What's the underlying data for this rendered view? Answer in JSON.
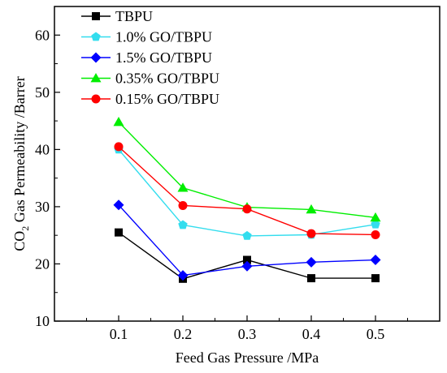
{
  "chart_data": {
    "type": "line",
    "title": "",
    "xlabel": "Feed Gas Pressure /MPa",
    "ylabel": "CO2 Gas Permeability /Barrer",
    "ylabel_parts": {
      "pre": "CO",
      "sub": "2",
      "post": " Gas Permeability /Barrer"
    },
    "x": [
      0.1,
      0.2,
      0.3,
      0.4,
      0.5
    ],
    "xticks": [
      "0.1",
      "0.2",
      "0.3",
      "0.4",
      "0.5"
    ],
    "yticks": [
      "10",
      "20",
      "30",
      "40",
      "50",
      "60"
    ],
    "xlim": [
      0.0,
      0.6
    ],
    "ylim": [
      10,
      65
    ],
    "grid": false,
    "legend_position": "top-left",
    "series": [
      {
        "name": "TBPU",
        "color": "#000000",
        "marker": "square",
        "values": [
          25.5,
          17.4,
          20.7,
          17.5,
          17.5
        ]
      },
      {
        "name": "1.0% GO/TBPU",
        "color": "#33ddee",
        "marker": "pentagon",
        "values": [
          40.0,
          26.8,
          24.9,
          25.1,
          26.9
        ]
      },
      {
        "name": "1.5% GO/TBPU",
        "color": "#0000ff",
        "marker": "diamond",
        "values": [
          30.3,
          18.0,
          19.6,
          20.3,
          20.7
        ]
      },
      {
        "name": "0.35% GO/TBPU",
        "color": "#00ee00",
        "marker": "triangle",
        "values": [
          44.8,
          33.3,
          29.9,
          29.5,
          28.1
        ]
      },
      {
        "name": "0.15%  GO/TBPU",
        "color": "#ff0000",
        "marker": "circle",
        "values": [
          40.5,
          30.2,
          29.6,
          25.3,
          25.1
        ]
      }
    ]
  }
}
